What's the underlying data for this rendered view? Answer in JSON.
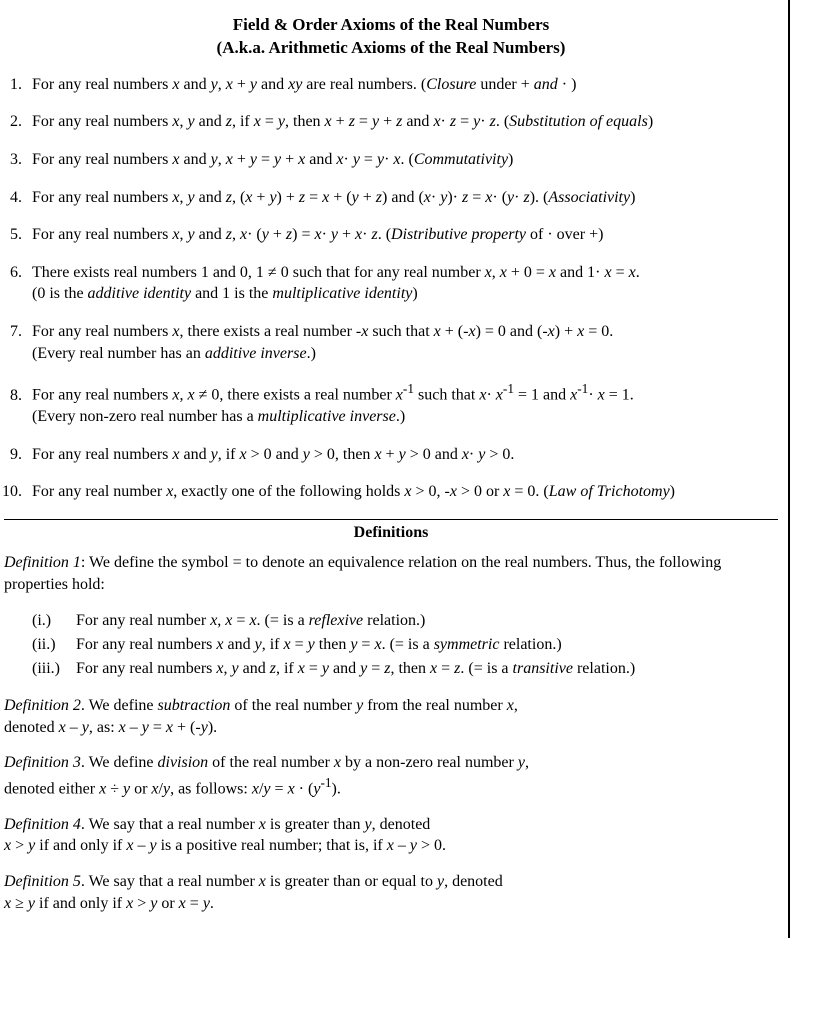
{
  "title_line1": "Field & Order Axioms of the Real Numbers",
  "title_line2": "(A.k.a. Arithmetic Axioms of the Real Numbers)",
  "axioms": [
    {
      "html": "For any real numbers <i>x</i> and <i>y</i>, <i>x</i> + <i>y</i> and <i>xy</i> are real numbers. (<i>Closure</i> under + <i>and</i> · )"
    },
    {
      "html": "For any real numbers <i>x</i>, <i>y</i> and <i>z</i>, if <i>x</i> = <i>y</i>, then <i>x</i> + <i>z</i> = <i>y</i> + <i>z</i> and <i>x</i>· <i>z</i> = <i>y</i>· <i>z</i>. (<i>Substitution of equals</i>)"
    },
    {
      "html": "For any real numbers <i>x</i> and <i>y</i>, <i>x</i> + <i>y</i> = <i>y</i> + <i>x</i> and <i>x</i>· <i>y</i> = <i>y</i>· <i>x</i>. (<i>Commutativity</i>)"
    },
    {
      "html": "For any real numbers <i>x</i>, <i>y</i> and <i>z</i>, (<i>x</i> + <i>y</i>) + <i>z</i> = <i>x</i> + (<i>y</i> + <i>z</i>) and (<i>x</i>· <i>y</i>)· <i>z</i> = <i>x</i>· (<i>y</i>· <i>z</i>).  (<i>Associativity</i>)"
    },
    {
      "html": "For any real numbers <i>x</i>, <i>y</i> and <i>z</i>, <i>x</i>· (<i>y</i> + <i>z</i>) = <i>x</i>· <i>y</i> + <i>x</i>· <i>z</i>. (<i>Distributive property</i> of · over +)"
    },
    {
      "html": "There exists real numbers 1 and 0, 1 ≠ 0 such that for any real number <i>x</i>, <i>x</i> + 0 = <i>x</i> and 1· <i>x</i> = <i>x</i>.<br>(0 is the <i>additive identity</i> and 1 is the <i>multiplicative identity</i>)"
    },
    {
      "html": "For any real numbers <i>x</i>, there exists a real number -<i>x</i> such that <i>x</i> + (-<i>x</i>) = 0 and (-<i>x</i>) + <i>x</i> = 0.<br>(Every real number has an <i>additive inverse</i>.)"
    },
    {
      "html": "For any real numbers <i>x</i>, <i>x</i> ≠ 0, there exists a real number <i>x</i><sup>-1</sup> such that <i>x</i>· <i>x</i><sup>-1</sup> = 1 and <i>x</i><sup>-1</sup>· <i>x</i> = 1.<br>(Every non-zero real number has a <i>multiplicative inverse</i>.)"
    },
    {
      "html": "For any real numbers <i>x</i> and <i>y</i>, if <i>x</i> &gt; 0 and <i>y</i> &gt; 0, then <i>x</i> + <i>y</i> &gt; 0 and <i>x</i>· <i>y</i> &gt; 0."
    },
    {
      "html": "For any real number <i>x</i>, exactly one of the following holds <i>x</i> &gt; 0, -<i>x</i> &gt; 0 or <i>x</i> = 0. (<i>Law of Trichotomy</i>)"
    }
  ],
  "definitions_heading": "Definitions",
  "def1_intro": "<span class=\"def-head\">Definition 1</span>: We define the symbol = to denote an equivalence relation on the real numbers. Thus, the following properties hold:",
  "def1_items": [
    {
      "label": "(i.)",
      "html": "For any real number <i>x</i>, <i>x</i> = <i>x</i>.  (= is a <i>reflexive</i> relation.)"
    },
    {
      "label": "(ii.)",
      "html": "For any real numbers <i>x</i> and <i>y</i>, if <i>x</i> = <i>y</i> then <i>y</i> = <i>x</i>. (= is a <i>symmetric</i> relation.)"
    },
    {
      "label": "(iii.)",
      "html": "For any real numbers <i>x</i>, <i>y</i> and <i>z</i>, if <i>x</i> = <i>y</i> and <i>y</i> = <i>z</i>, then <i>x</i> = <i>z</i>. (= is a <i>transitive</i> relation.)"
    }
  ],
  "def2": "<span class=\"def-head\">Definition 2</span>. We define <i>subtraction</i> of the real number <i>y</i> from the real number <i>x</i>,<br>denoted <i>x</i> – <i>y</i>, as: <i>x</i> – <i>y</i> = <i>x</i> + (-<i>y</i>).",
  "def3": "<span class=\"def-head\">Definition 3</span>. We define <i>division</i> of the real number <i>x</i> by a non-zero real number <i>y</i>,<br>denoted either <i>x</i> ÷ <i>y</i> or <i>x</i>/<i>y</i>, as follows: <i>x</i>/<i>y</i> = <i>x</i> · (<i>y</i><sup>-1</sup>).",
  "def4": "<span class=\"def-head\">Definition 4</span>. We say that a real number <i>x</i> is greater than <i>y</i>, denoted<br><i>x</i> &gt; <i>y</i> if and only if <i>x</i> – <i>y</i> is a positive real number; that is, if <i>x</i> – <i>y</i> &gt; 0.",
  "def5": "<span class=\"def-head\">Definition 5</span>. We say that a real number <i>x</i> is greater than or equal to <i>y</i>, denoted<br><i>x</i> ≥ <i>y</i> if and only if <i>x</i> &gt; <i>y</i> or <i>x</i> = <i>y</i>."
}
